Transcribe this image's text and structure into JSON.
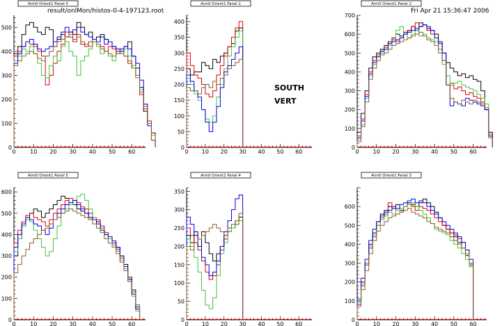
{
  "header": {
    "file_label": "result/onlMon/histos-0-4-197123.root",
    "date_label": "Fri Apr 21 15:36:47 2006"
  },
  "annotation": {
    "line1": "SOUTH",
    "line2": "VERT"
  },
  "colors": {
    "black": "#000000",
    "red": "#e00000",
    "green": "#3ec43e",
    "blue": "#0000e0",
    "brown": "#8b5a2b",
    "axis": "#000000",
    "baseline": "#ff0000"
  },
  "chart_data": [
    {
      "type": "line",
      "title": "Arm0 Orient1 Panel 0",
      "xlim": [
        0,
        67
      ],
      "ylim": [
        0,
        550
      ],
      "xticks": [
        0,
        10,
        20,
        30,
        40,
        50,
        60
      ],
      "yticks": [
        0,
        100,
        200,
        300,
        400,
        500
      ],
      "series": [
        {
          "color": "black",
          "values": [
            390,
            420,
            470,
            510,
            520,
            500,
            480,
            470,
            500,
            490,
            420,
            450,
            470,
            460,
            480,
            470,
            520,
            500,
            470,
            480,
            450,
            460,
            470,
            450,
            440,
            420,
            400,
            410,
            420,
            440,
            380,
            330,
            250,
            150,
            100,
            60
          ]
        },
        {
          "color": "red",
          "values": [
            380,
            400,
            420,
            440,
            430,
            420,
            400,
            380,
            260,
            300,
            350,
            400,
            430,
            480,
            460,
            440,
            470,
            430,
            420,
            440,
            450,
            430,
            420,
            400,
            420,
            410,
            390,
            400,
            380,
            350,
            330,
            300,
            220,
            160,
            110,
            60
          ]
        },
        {
          "color": "green",
          "values": [
            360,
            380,
            410,
            400,
            420,
            390,
            350,
            300,
            290,
            340,
            380,
            360,
            420,
            440,
            400,
            380,
            300,
            360,
            380,
            410,
            450,
            420,
            390,
            400,
            380,
            360,
            390,
            400,
            410,
            380,
            340,
            300,
            240,
            180,
            100,
            50
          ]
        },
        {
          "color": "blue",
          "values": [
            350,
            390,
            420,
            440,
            450,
            430,
            410,
            400,
            410,
            420,
            440,
            460,
            480,
            500,
            480,
            490,
            500,
            480,
            470,
            460,
            450,
            440,
            460,
            430,
            440,
            420,
            410,
            400,
            420,
            410,
            380,
            350,
            280,
            180,
            90,
            30
          ]
        },
        {
          "color": "brown",
          "values": [
            340,
            360,
            380,
            390,
            400,
            390,
            370,
            360,
            380,
            400,
            420,
            440,
            450,
            460,
            470,
            450,
            460,
            440,
            430,
            420,
            440,
            430,
            410,
            400,
            390,
            380,
            400,
            390,
            380,
            360,
            330,
            290,
            230,
            170,
            100,
            30
          ]
        }
      ]
    },
    {
      "type": "line",
      "title": "Arm0 Orient1 Panel 1",
      "xlim": [
        0,
        67
      ],
      "ylim": [
        0,
        420
      ],
      "xticks": [
        0,
        10,
        20,
        30,
        40,
        50,
        60
      ],
      "yticks": [
        0,
        50,
        100,
        150,
        200,
        250,
        300,
        350,
        400
      ],
      "series": [
        {
          "color": "black",
          "values": [
            250,
            230,
            240,
            240,
            270,
            260,
            250,
            280,
            270,
            290,
            300,
            320,
            330,
            370,
            380
          ]
        },
        {
          "color": "red",
          "values": [
            300,
            260,
            230,
            220,
            200,
            170,
            160,
            180,
            230,
            260,
            290,
            320,
            350,
            380,
            400
          ]
        },
        {
          "color": "green",
          "values": [
            220,
            200,
            170,
            150,
            120,
            90,
            80,
            100,
            160,
            200,
            250,
            290,
            320,
            350,
            370
          ]
        },
        {
          "color": "blue",
          "values": [
            230,
            210,
            180,
            160,
            120,
            80,
            50,
            80,
            130,
            190,
            240,
            260,
            280,
            300,
            320
          ]
        },
        {
          "color": "brown",
          "values": [
            190,
            180,
            180,
            170,
            190,
            200,
            190,
            210,
            200,
            220,
            230,
            250,
            260,
            270,
            280
          ]
        }
      ]
    },
    {
      "type": "line",
      "title": "Arm0 Orient1 Panel 2",
      "xlim": [
        0,
        67
      ],
      "ylim": [
        0,
        700
      ],
      "xticks": [
        0,
        10,
        20,
        30,
        40,
        50,
        60
      ],
      "yticks": [
        0,
        100,
        200,
        300,
        400,
        500,
        600,
        700
      ],
      "series": [
        {
          "color": "black",
          "values": [
            80,
            180,
            300,
            420,
            480,
            500,
            520,
            540,
            560,
            580,
            600,
            590,
            610,
            620,
            640,
            620,
            660,
            650,
            630,
            620,
            600,
            560,
            500,
            450,
            420,
            400,
            380,
            390,
            370,
            380,
            360,
            350,
            300,
            200,
            80
          ]
        },
        {
          "color": "red",
          "values": [
            60,
            150,
            280,
            400,
            460,
            490,
            510,
            530,
            550,
            570,
            560,
            580,
            600,
            620,
            640,
            660,
            640,
            650,
            620,
            600,
            580,
            520,
            460,
            330,
            340,
            310,
            320,
            300,
            280,
            290,
            270,
            260,
            240,
            200,
            70
          ]
        },
        {
          "color": "green",
          "values": [
            40,
            120,
            260,
            380,
            440,
            480,
            500,
            520,
            540,
            560,
            620,
            640,
            600,
            580,
            600,
            620,
            590,
            600,
            580,
            570,
            560,
            520,
            440,
            380,
            330,
            340,
            350,
            330,
            320,
            310,
            300,
            280,
            260,
            230,
            60
          ]
        },
        {
          "color": "blue",
          "values": [
            50,
            140,
            270,
            390,
            450,
            480,
            510,
            520,
            550,
            560,
            570,
            580,
            600,
            610,
            620,
            630,
            640,
            650,
            640,
            620,
            580,
            550,
            500,
            330,
            220,
            240,
            230,
            220,
            260,
            250,
            240,
            230,
            220,
            200,
            60
          ]
        },
        {
          "color": "brown",
          "values": [
            30,
            110,
            240,
            360,
            420,
            460,
            490,
            500,
            520,
            540,
            550,
            560,
            570,
            580,
            590,
            600,
            610,
            590,
            570,
            560,
            540,
            500,
            460,
            330,
            260,
            240,
            230,
            250,
            240,
            230,
            250,
            240,
            230,
            210,
            50
          ]
        }
      ]
    },
    {
      "type": "line",
      "title": "Arm0 Orient1 Panel 5",
      "xlim": [
        0,
        67
      ],
      "ylim": [
        0,
        620
      ],
      "xticks": [
        0,
        10,
        20,
        30,
        40,
        50,
        60
      ],
      "yticks": [
        0,
        100,
        200,
        300,
        400,
        500,
        600
      ],
      "series": [
        {
          "color": "black",
          "values": [
            300,
            380,
            440,
            470,
            500,
            520,
            510,
            480,
            500,
            520,
            540,
            560,
            580,
            570,
            550,
            540,
            520,
            510,
            500,
            480,
            470,
            460,
            430,
            400,
            380,
            360,
            340,
            300,
            260,
            200,
            140,
            60
          ]
        },
        {
          "color": "red",
          "values": [
            360,
            420,
            460,
            490,
            500,
            480,
            470,
            460,
            440,
            470,
            500,
            520,
            540,
            560,
            570,
            560,
            550,
            530,
            520,
            500,
            480,
            470,
            440,
            410,
            380,
            360,
            330,
            290,
            240,
            190,
            130,
            50
          ]
        },
        {
          "color": "green",
          "values": [
            320,
            380,
            440,
            470,
            460,
            420,
            380,
            340,
            300,
            320,
            380,
            440,
            500,
            520,
            540,
            560,
            580,
            590,
            560,
            520,
            480,
            450,
            430,
            400,
            380,
            350,
            320,
            280,
            240,
            180,
            110,
            40
          ]
        },
        {
          "color": "blue",
          "values": [
            340,
            400,
            450,
            480,
            470,
            450,
            440,
            420,
            400,
            430,
            470,
            500,
            520,
            540,
            550,
            560,
            540,
            520,
            500,
            480,
            470,
            450,
            420,
            400,
            390,
            370,
            340,
            300,
            250,
            190,
            120,
            50
          ]
        },
        {
          "color": "brown",
          "values": [
            220,
            260,
            300,
            330,
            360,
            380,
            400,
            420,
            430,
            450,
            470,
            480,
            500,
            510,
            520,
            510,
            500,
            490,
            480,
            470,
            450,
            430,
            410,
            380,
            360,
            340,
            310,
            270,
            230,
            180,
            130,
            70
          ]
        }
      ]
    },
    {
      "type": "line",
      "title": "Arm0 Orient1 Panel 4",
      "xlim": [
        0,
        67
      ],
      "ylim": [
        0,
        360
      ],
      "xticks": [
        0,
        10,
        20,
        30,
        40,
        50,
        60
      ],
      "yticks": [
        0,
        50,
        100,
        150,
        200,
        250,
        300,
        350
      ],
      "series": [
        {
          "color": "black",
          "values": [
            230,
            210,
            240,
            200,
            240,
            210,
            180,
            160,
            180,
            200,
            230,
            240,
            250,
            270,
            280
          ]
        },
        {
          "color": "red",
          "values": [
            250,
            230,
            210,
            190,
            160,
            130,
            110,
            120,
            150,
            190,
            220,
            240,
            250,
            260,
            270
          ]
        },
        {
          "color": "green",
          "values": [
            220,
            200,
            170,
            130,
            80,
            40,
            30,
            60,
            120,
            180,
            210,
            240,
            250,
            260,
            270
          ]
        },
        {
          "color": "blue",
          "values": [
            280,
            260,
            230,
            200,
            170,
            150,
            120,
            130,
            160,
            200,
            240,
            270,
            300,
            330,
            340
          ]
        },
        {
          "color": "brown",
          "values": [
            200,
            190,
            210,
            220,
            230,
            240,
            250,
            260,
            250,
            240,
            230,
            250,
            260,
            270,
            290
          ]
        }
      ]
    },
    {
      "type": "line",
      "title": "Arm0 Orient1 Panel 3",
      "xlim": [
        0,
        67
      ],
      "ylim": [
        0,
        700
      ],
      "xticks": [
        0,
        10,
        20,
        30,
        40,
        50,
        60
      ],
      "yticks": [
        0,
        100,
        200,
        300,
        400,
        500,
        600
      ],
      "series": [
        {
          "color": "black",
          "values": [
            100,
            200,
            300,
            400,
            460,
            520,
            560,
            580,
            600,
            590,
            610,
            580,
            600,
            620,
            610,
            600,
            620,
            640,
            620,
            600,
            570,
            540,
            500,
            480,
            460,
            440,
            410,
            380,
            340,
            290
          ]
        },
        {
          "color": "red",
          "values": [
            80,
            180,
            290,
            380,
            440,
            500,
            540,
            560,
            620,
            590,
            560,
            570,
            600,
            610,
            600,
            580,
            600,
            590,
            580,
            560,
            540,
            520,
            500,
            480,
            460,
            450,
            430,
            410,
            370,
            300
          ]
        },
        {
          "color": "green",
          "values": [
            90,
            190,
            300,
            390,
            450,
            500,
            530,
            550,
            570,
            560,
            580,
            590,
            600,
            610,
            620,
            600,
            580,
            560,
            540,
            510,
            480,
            470,
            460,
            450,
            420,
            400,
            380,
            350,
            320,
            280
          ]
        },
        {
          "color": "blue",
          "values": [
            110,
            220,
            320,
            420,
            480,
            520,
            550,
            570,
            580,
            600,
            590,
            610,
            620,
            630,
            640,
            620,
            630,
            620,
            600,
            580,
            560,
            540,
            520,
            500,
            480,
            460,
            440,
            410,
            370,
            320
          ]
        },
        {
          "color": "brown",
          "values": [
            70,
            160,
            260,
            350,
            420,
            470,
            500,
            520,
            540,
            550,
            560,
            570,
            580,
            590,
            570,
            560,
            550,
            540,
            520,
            510,
            490,
            480,
            470,
            460,
            440,
            420,
            400,
            380,
            350,
            300
          ]
        }
      ]
    }
  ]
}
